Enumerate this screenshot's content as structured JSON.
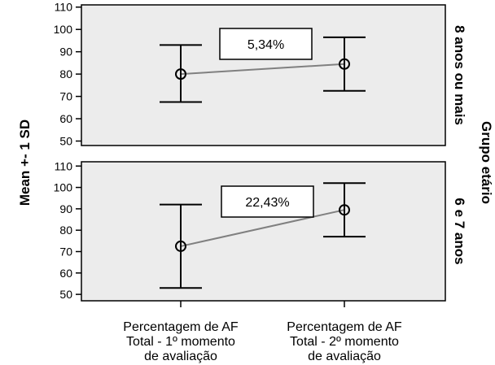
{
  "chart_data": {
    "type": "error-bar",
    "ylabel": "Mean +- 1 SD",
    "right_title": "Grupo etário",
    "categories": [
      [
        "Percentagem de AF",
        "Total - 1º momento",
        "de avaliação"
      ],
      [
        "Percentagem de AF",
        "Total - 2º momento",
        "de avaliação"
      ]
    ],
    "panels": [
      {
        "label": "8 anos ou mais",
        "ylim": [
          48,
          111
        ],
        "yticks": [
          50,
          60,
          70,
          80,
          90,
          100,
          110
        ],
        "means": [
          80.0,
          84.5
        ],
        "lower": [
          67.5,
          72.5
        ],
        "upper": [
          93.0,
          96.5
        ],
        "annotation": "5,34%"
      },
      {
        "label": "6 e 7 anos",
        "ylim": [
          47,
          112
        ],
        "yticks": [
          50,
          60,
          70,
          80,
          90,
          100,
          110
        ],
        "means": [
          72.5,
          89.5
        ],
        "lower": [
          53.0,
          77.0
        ],
        "upper": [
          92.0,
          102.0
        ],
        "annotation": "22,43%"
      }
    ],
    "colors": {
      "panel_bg": "#ececec",
      "line": "#808080",
      "axis": "#000000"
    }
  }
}
